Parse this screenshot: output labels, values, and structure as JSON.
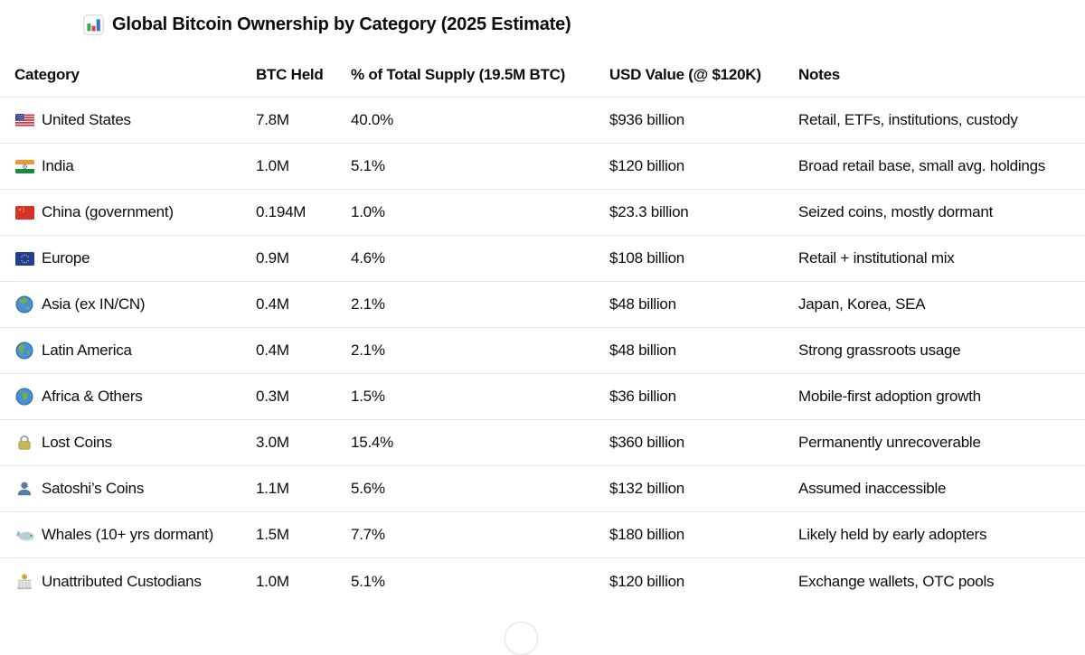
{
  "title": {
    "icon": "bar-chart",
    "text": "Global Bitcoin Ownership by Category (2025 Estimate)"
  },
  "table": {
    "headers": {
      "category": "Category",
      "btc_held": "BTC Held",
      "pct_supply": "% of Total Supply (19.5M BTC)",
      "usd_value": "USD Value (@ $120K)",
      "notes": "Notes"
    },
    "rows": [
      {
        "icon": "us-flag",
        "category": "United States",
        "btc_held": "7.8M",
        "pct_supply": "40.0%",
        "usd_value": "$936 billion",
        "notes": "Retail, ETFs, institutions, custody"
      },
      {
        "icon": "india-flag",
        "category": "India",
        "btc_held": "1.0M",
        "pct_supply": "5.1%",
        "usd_value": "$120 billion",
        "notes": "Broad retail base, small avg. holdings"
      },
      {
        "icon": "china-flag",
        "category": "China (government)",
        "btc_held": "0.194M",
        "pct_supply": "1.0%",
        "usd_value": "$23.3 billion",
        "notes": "Seized coins, mostly dormant"
      },
      {
        "icon": "eu-flag",
        "category": "Europe",
        "btc_held": "0.9M",
        "pct_supply": "4.6%",
        "usd_value": "$108 billion",
        "notes": "Retail + institutional mix"
      },
      {
        "icon": "globe-asia",
        "category": "Asia (ex IN/CN)",
        "btc_held": "0.4M",
        "pct_supply": "2.1%",
        "usd_value": "$48 billion",
        "notes": "Japan, Korea, SEA"
      },
      {
        "icon": "globe-americas",
        "category": "Latin America",
        "btc_held": "0.4M",
        "pct_supply": "2.1%",
        "usd_value": "$48 billion",
        "notes": "Strong grassroots usage"
      },
      {
        "icon": "globe-africa",
        "category": "Africa & Others",
        "btc_held": "0.3M",
        "pct_supply": "1.5%",
        "usd_value": "$36 billion",
        "notes": "Mobile-first adoption growth"
      },
      {
        "icon": "lock",
        "category": "Lost Coins",
        "btc_held": "3.0M",
        "pct_supply": "15.4%",
        "usd_value": "$360 billion",
        "notes": "Permanently unrecoverable"
      },
      {
        "icon": "bust-silhouette",
        "category": "Satoshi’s Coins",
        "btc_held": "1.1M",
        "pct_supply": "5.6%",
        "usd_value": "$132 billion",
        "notes": "Assumed inaccessible"
      },
      {
        "icon": "whale",
        "category": "Whales (10+ yrs dormant)",
        "btc_held": "1.5M",
        "pct_supply": "7.7%",
        "usd_value": "$180 billion",
        "notes": "Likely held by early adopters"
      },
      {
        "icon": "bank",
        "category": "Unattributed Custodians",
        "btc_held": "1.0M",
        "pct_supply": "5.1%",
        "usd_value": "$120 billion",
        "notes": "Exchange wallets, OTC pools"
      }
    ]
  },
  "colors": {
    "text": "#0d0d0d",
    "divider": "#e7e7e7",
    "background": "#ffffff"
  }
}
